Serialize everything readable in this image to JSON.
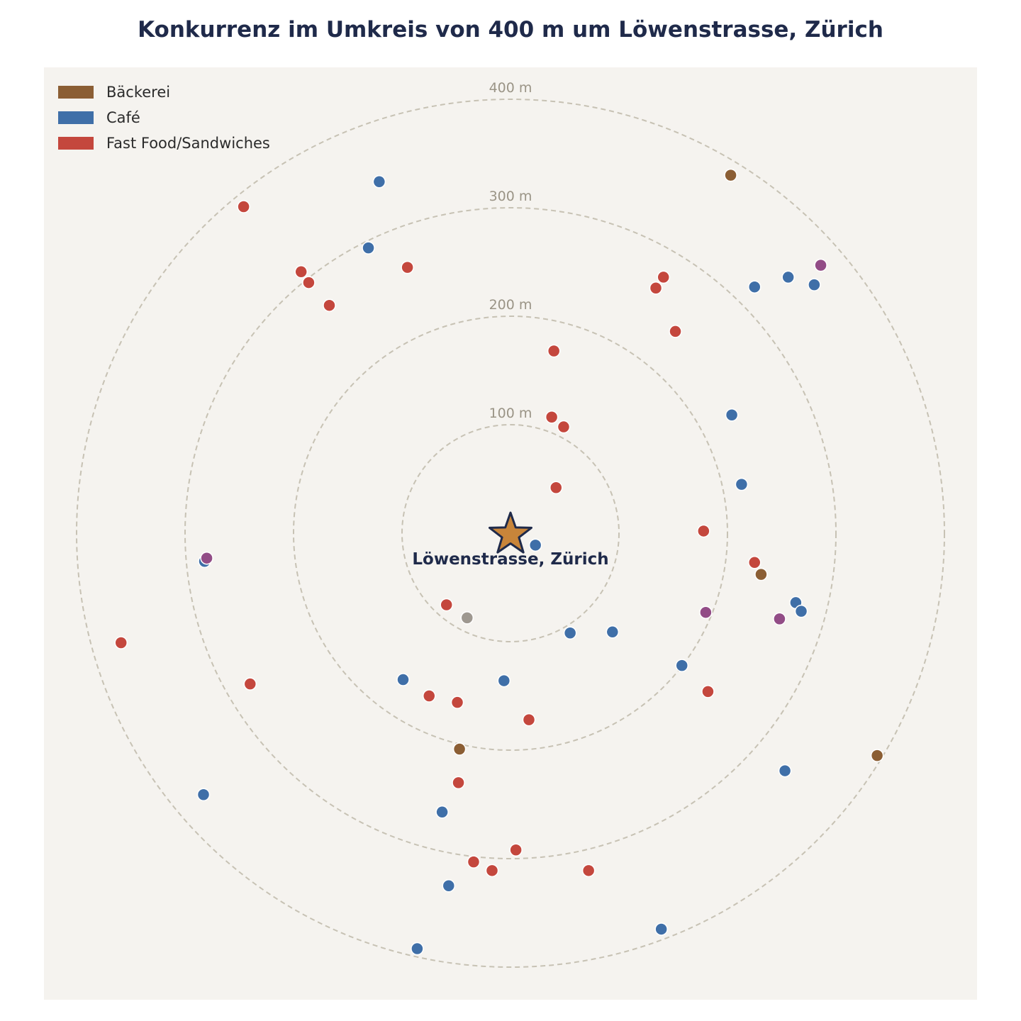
{
  "chart_data": {
    "type": "scatter",
    "title": "Konkurrenz im Umkreis von 400 m um Löwenstrasse, Zürich",
    "center_label": "Löwenstrasse, Zürich",
    "ring_labels": [
      "100 m",
      "200 m",
      "300 m",
      "400 m"
    ],
    "ring_radii_m": [
      100,
      200,
      300,
      400
    ],
    "xlim_m": [
      -430,
      430
    ],
    "ylim_m": [
      -430,
      430
    ],
    "grid": false,
    "legend_placement": "top-left",
    "legend": [
      {
        "name": "Bäckerei",
        "color": "#8b5e34"
      },
      {
        "name": "Café",
        "color": "#3f6fa8"
      },
      {
        "name": "Fast Food/Sandwiches",
        "color": "#c4473d"
      }
    ],
    "colors": {
      "background": "#f5f3ef",
      "ring": "#c7c2b4",
      "ring_label": "#9a9486",
      "title": "#1f2a4a",
      "star": "#c8853a",
      "other_purple": "#924c86",
      "other_grey": "#9e9890"
    },
    "points": [
      {
        "category": "Bäckerei",
        "x": 203,
        "y": 330
      },
      {
        "category": "Bäckerei",
        "x": 231,
        "y": -38
      },
      {
        "category": "Bäckerei",
        "x": -47,
        "y": -199
      },
      {
        "category": "Bäckerei",
        "x": 338,
        "y": -205
      },
      {
        "category": "Café",
        "x": -121,
        "y": 324
      },
      {
        "category": "Café",
        "x": -131,
        "y": 263
      },
      {
        "category": "Café",
        "x": 225,
        "y": 227
      },
      {
        "category": "Café",
        "x": 256,
        "y": 236
      },
      {
        "category": "Café",
        "x": 280,
        "y": 229
      },
      {
        "category": "Café",
        "x": 204,
        "y": 109
      },
      {
        "category": "Café",
        "x": 213,
        "y": 45
      },
      {
        "category": "Café",
        "x": 23,
        "y": -11
      },
      {
        "category": "Café",
        "x": -282,
        "y": -26
      },
      {
        "category": "Café",
        "x": 263,
        "y": -64
      },
      {
        "category": "Café",
        "x": 268,
        "y": -72
      },
      {
        "category": "Café",
        "x": 55,
        "y": -92
      },
      {
        "category": "Café",
        "x": 94,
        "y": -91
      },
      {
        "category": "Café",
        "x": 158,
        "y": -122
      },
      {
        "category": "Café",
        "x": -99,
        "y": -135
      },
      {
        "category": "Café",
        "x": -6,
        "y": -136
      },
      {
        "category": "Café",
        "x": 253,
        "y": -219
      },
      {
        "category": "Café",
        "x": -283,
        "y": -241
      },
      {
        "category": "Café",
        "x": -63,
        "y": -257
      },
      {
        "category": "Café",
        "x": -57,
        "y": -325
      },
      {
        "category": "Café",
        "x": 139,
        "y": -365
      },
      {
        "category": "Café",
        "x": -86,
        "y": -383
      },
      {
        "category": "Fast Food/Sandwiches",
        "x": -246,
        "y": 301
      },
      {
        "category": "Fast Food/Sandwiches",
        "x": -193,
        "y": 241
      },
      {
        "category": "Fast Food/Sandwiches",
        "x": -186,
        "y": 231
      },
      {
        "category": "Fast Food/Sandwiches",
        "x": -167,
        "y": 210
      },
      {
        "category": "Fast Food/Sandwiches",
        "x": -95,
        "y": 245
      },
      {
        "category": "Fast Food/Sandwiches",
        "x": 141,
        "y": 236
      },
      {
        "category": "Fast Food/Sandwiches",
        "x": 134,
        "y": 226
      },
      {
        "category": "Fast Food/Sandwiches",
        "x": 152,
        "y": 186
      },
      {
        "category": "Fast Food/Sandwiches",
        "x": 40,
        "y": 168
      },
      {
        "category": "Fast Food/Sandwiches",
        "x": 38,
        "y": 107
      },
      {
        "category": "Fast Food/Sandwiches",
        "x": 49,
        "y": 98
      },
      {
        "category": "Fast Food/Sandwiches",
        "x": 42,
        "y": 42
      },
      {
        "category": "Fast Food/Sandwiches",
        "x": 178,
        "y": 2
      },
      {
        "category": "Fast Food/Sandwiches",
        "x": 225,
        "y": -27
      },
      {
        "category": "Fast Food/Sandwiches",
        "x": -59,
        "y": -66
      },
      {
        "category": "Fast Food/Sandwiches",
        "x": -359,
        "y": -101
      },
      {
        "category": "Fast Food/Sandwiches",
        "x": -240,
        "y": -139
      },
      {
        "category": "Fast Food/Sandwiches",
        "x": -75,
        "y": -150
      },
      {
        "category": "Fast Food/Sandwiches",
        "x": -49,
        "y": -156
      },
      {
        "category": "Fast Food/Sandwiches",
        "x": 17,
        "y": -172
      },
      {
        "category": "Fast Food/Sandwiches",
        "x": 182,
        "y": -146
      },
      {
        "category": "Fast Food/Sandwiches",
        "x": -48,
        "y": -230
      },
      {
        "category": "Fast Food/Sandwiches",
        "x": 5,
        "y": -292
      },
      {
        "category": "Fast Food/Sandwiches",
        "x": -34,
        "y": -303
      },
      {
        "category": "Fast Food/Sandwiches",
        "x": -17,
        "y": -311
      },
      {
        "category": "Fast Food/Sandwiches",
        "x": 72,
        "y": -311
      },
      {
        "category": "other_purple",
        "x": 286,
        "y": 247
      },
      {
        "category": "other_purple",
        "x": -280,
        "y": -23
      },
      {
        "category": "other_purple",
        "x": 180,
        "y": -73
      },
      {
        "category": "other_purple",
        "x": 248,
        "y": -79
      },
      {
        "category": "other_grey",
        "x": -40,
        "y": -78
      }
    ]
  }
}
